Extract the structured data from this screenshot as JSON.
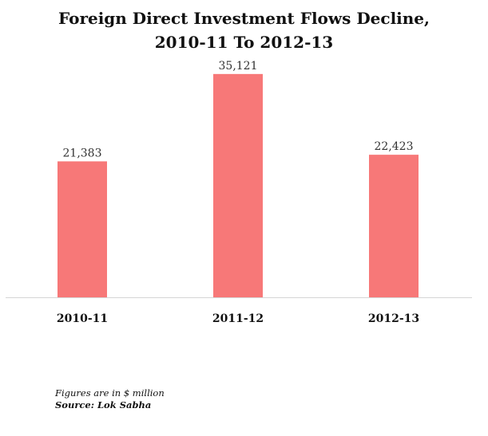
{
  "title_lines": [
    "Foreign Direct Investment Flows Decline,",
    "2010-11 To 2012-13"
  ],
  "chart_data": {
    "type": "bar",
    "title": "Foreign Direct Investment Flows Decline, 2010-11 To 2012-13",
    "categories": [
      "2010-11",
      "2011-12",
      "2012-13"
    ],
    "values": [
      21383,
      35121,
      22423
    ],
    "value_labels": [
      "21,383",
      "35,121",
      "22,423"
    ],
    "ylim": [
      0,
      43000
    ],
    "grid": false,
    "legend": "none",
    "bar_color": "#f77878",
    "baseline_color": "#d5d5d5"
  },
  "notes": {
    "units": "Figures are in $ million",
    "source": "Source: Lok Sabha"
  }
}
